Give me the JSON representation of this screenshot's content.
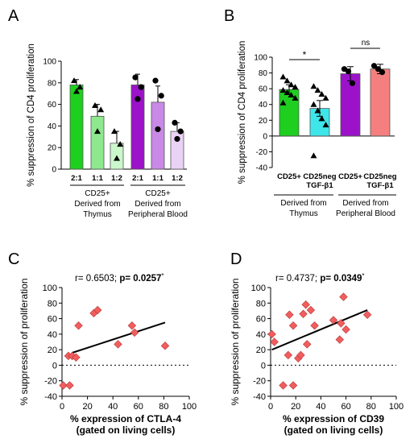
{
  "panels": {
    "A": {
      "letter": "A"
    },
    "B": {
      "letter": "B"
    },
    "C": {
      "letter": "C"
    },
    "D": {
      "letter": "D"
    }
  },
  "colors": {
    "green": "#1fcf1f",
    "green_light": "#8ee88e",
    "green_pale": "#ccf7cc",
    "purple": "#9b12c9",
    "purple_light": "#c989e6",
    "purple_pale": "#ead2f5",
    "cyan": "#3ee6ea",
    "salmon": "#f57f7f",
    "diamond": "#f25d5d",
    "diamond_edge": "#b23c3c"
  },
  "chart_data": [
    {
      "id": "A",
      "type": "bar",
      "ylabel": "% suppression of CD4 proliferation",
      "ylim": [
        0,
        100
      ],
      "yticks": [
        0,
        20,
        40,
        60,
        80,
        100
      ],
      "categories": [
        "2:1",
        "1:1",
        "1:2",
        "2:1",
        "1:1",
        "1:2"
      ],
      "values": [
        78,
        49,
        24,
        78,
        62,
        35
      ],
      "errors": [
        5,
        11,
        11,
        10,
        15,
        8
      ],
      "markers": [
        "triangle",
        "triangle",
        "triangle",
        "circle",
        "circle",
        "circle"
      ],
      "points": [
        [
          82,
          76,
          72
        ],
        [
          59,
          55,
          35
        ],
        [
          35,
          23,
          10
        ],
        [
          85,
          76,
          65
        ],
        [
          82,
          68,
          37
        ],
        [
          43,
          35,
          28
        ]
      ],
      "groups": [
        {
          "line1": "CD25+",
          "line2": "Derived from",
          "line3": "Thymus"
        },
        {
          "line1": "CD25+",
          "line2": "Derived from",
          "line3": "Peripheral Blood"
        }
      ]
    },
    {
      "id": "B",
      "type": "bar",
      "ylabel": "% suppression of CD4 proliferation",
      "ylim": [
        -40,
        100
      ],
      "yticks": [
        -40,
        -20,
        0,
        20,
        40,
        60,
        80,
        100
      ],
      "categories": [
        "CD25+",
        "CD25neg\nTGF-β1",
        "CD25+",
        "CD25neg\nTGF-β1"
      ],
      "values": [
        59,
        35,
        79,
        85
      ],
      "errors": [
        6,
        10,
        9,
        6
      ],
      "markers": [
        "triangle",
        "triangle",
        "circle",
        "circle"
      ],
      "points": [
        [
          75,
          70,
          65,
          62,
          58,
          55,
          52,
          48,
          42
        ],
        [
          63,
          58,
          53,
          48,
          40,
          32,
          22,
          14,
          -25
        ],
        [
          85,
          82,
          67
        ],
        [
          89,
          85,
          81
        ]
      ],
      "significance": [
        {
          "label": "*"
        },
        {
          "label": "ns"
        }
      ],
      "groups": [
        {
          "line1": "Derived from",
          "line2": "Thymus"
        },
        {
          "line1": "Derived from",
          "line2": "Peripheral Blood"
        }
      ]
    },
    {
      "id": "C",
      "type": "scatter",
      "annotation_plain": "r= 0.6503; ",
      "annotation_bold": "p= 0.0257",
      "annotation_star": "*",
      "xlabel_line1": "% expression of CTLA-4",
      "xlabel_line2": "(gated on living cells)",
      "ylabel": "% suppression of proliferation",
      "xlim": [
        0,
        100
      ],
      "ylim": [
        -40,
        100
      ],
      "xticks": [
        0,
        20,
        40,
        60,
        80,
        100
      ],
      "yticks": [
        -40,
        -20,
        0,
        20,
        40,
        60,
        80,
        100
      ],
      "x": [
        1,
        6,
        5,
        8,
        11,
        13,
        25,
        28,
        44,
        55,
        57,
        81
      ],
      "y": [
        -26,
        -26,
        12,
        12,
        10,
        51,
        67,
        71,
        27,
        51,
        42,
        25
      ],
      "fit": {
        "x": [
          8,
          81
        ],
        "y": [
          16,
          55
        ]
      },
      "zero_line": true
    },
    {
      "id": "D",
      "type": "scatter",
      "annotation_plain": "r= 0.4737; ",
      "annotation_bold": "p= 0.0349",
      "annotation_star": "*",
      "xlabel_line1": "% expression of CD39",
      "xlabel_line2": "(gated on living cells)",
      "ylabel": "% suppression of proliferation",
      "xlim": [
        0,
        100
      ],
      "ylim": [
        -40,
        100
      ],
      "xticks": [
        0,
        20,
        40,
        60,
        80,
        100
      ],
      "yticks": [
        -40,
        -20,
        0,
        20,
        40,
        60,
        80,
        100
      ],
      "x": [
        1,
        3,
        10,
        14,
        15,
        18,
        18,
        22,
        24,
        26,
        28,
        29,
        32,
        35,
        50,
        55,
        56,
        58,
        60,
        77
      ],
      "y": [
        40,
        30,
        -26,
        13,
        65,
        -26,
        51,
        9,
        13,
        66,
        78,
        27,
        71,
        51,
        58,
        33,
        54,
        88,
        46,
        65
      ],
      "fit": {
        "x": [
          1,
          77
        ],
        "y": [
          20,
          71
        ]
      },
      "zero_line": true
    }
  ]
}
